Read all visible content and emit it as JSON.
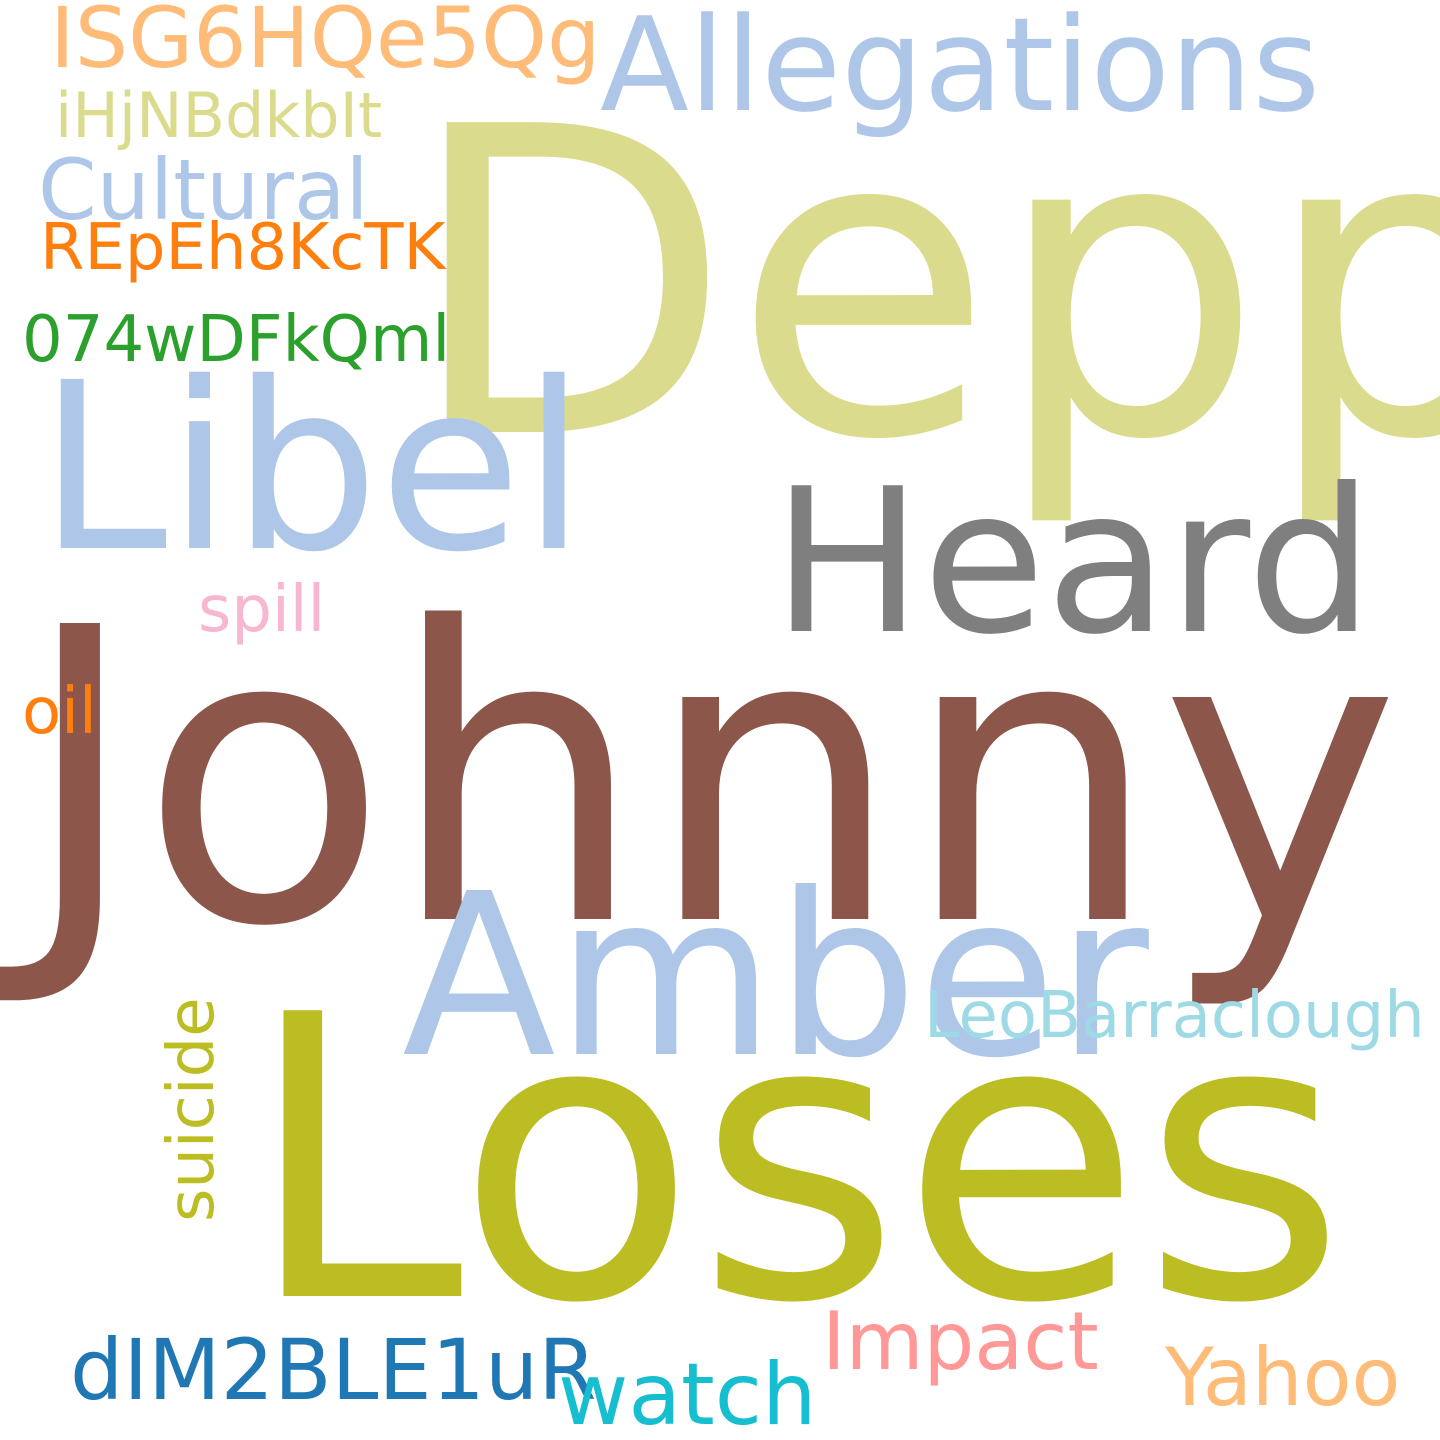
{
  "background": "#ffffff",
  "words": {
    "depp": {
      "text": "Depp",
      "color": "#dbdb8d"
    },
    "johnny": {
      "text": "Johnny",
      "color": "#8c564b"
    },
    "loses": {
      "text": "Loses",
      "color": "#bcbd22"
    },
    "libel": {
      "text": "Libel",
      "color": "#aec7e8"
    },
    "amber": {
      "text": "Amber",
      "color": "#aec7e8"
    },
    "heard": {
      "text": "Heard",
      "color": "#7f7f7f"
    },
    "allegations": {
      "text": "Allegations",
      "color": "#aec7e8"
    },
    "cultural": {
      "text": "Cultural",
      "color": "#aec7e8"
    },
    "isg": {
      "text": "ISG6HQe5Qg",
      "color": "#ffbb78"
    },
    "ihj": {
      "text": "iHjNBdkbIt",
      "color": "#dbdb8d"
    },
    "repe": {
      "text": "REpEh8KcTK",
      "color": "#ff7f0e"
    },
    "n074": {
      "text": "074wDFkQml",
      "color": "#2ca02c"
    },
    "spill": {
      "text": "spill",
      "color": "#f7b6d2"
    },
    "oil": {
      "text": "oil",
      "color": "#ff7f0e"
    },
    "suicide": {
      "text": "suicide",
      "color": "#bcbd22"
    },
    "leo": {
      "text": "LeoBarraclough",
      "color": "#9edae5"
    },
    "impact": {
      "text": "Impact",
      "color": "#ff9896"
    },
    "dim": {
      "text": "dIM2BLE1uR",
      "color": "#1f77b4"
    },
    "watch": {
      "text": "watch",
      "color": "#17becf"
    },
    "yahoo": {
      "text": "Yahoo",
      "color": "#ffbb78"
    }
  }
}
